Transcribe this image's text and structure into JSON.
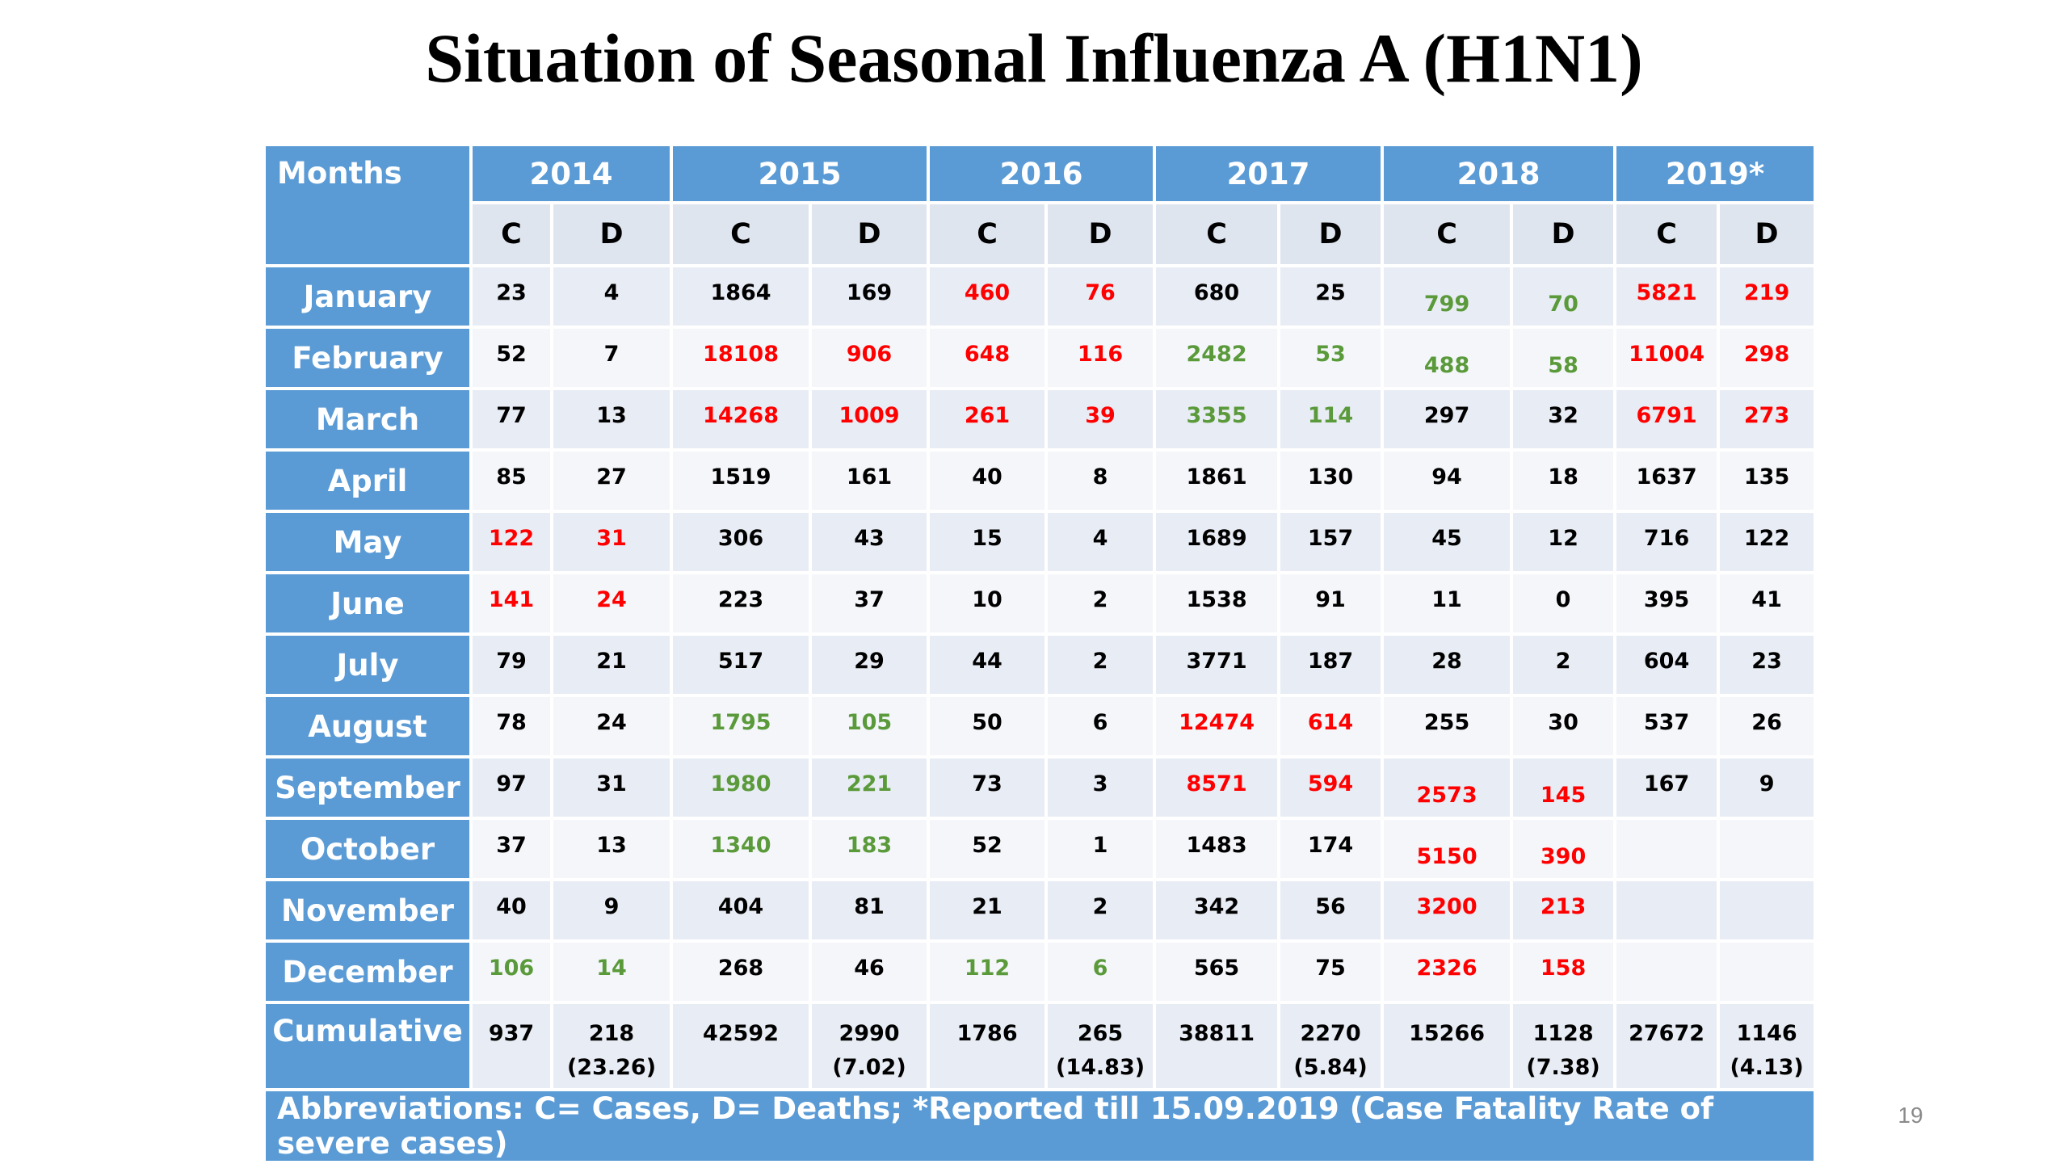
{
  "title": "Situation of Seasonal Influenza A (H1N1)",
  "slide_number": "19",
  "table": {
    "corner_label": "Months",
    "years": [
      "2014",
      "2015",
      "2016",
      "2017",
      "2018",
      "2019*"
    ],
    "subheaders": [
      "C",
      "D",
      "C",
      "D",
      "C",
      "D",
      "C",
      "D",
      "C",
      "D",
      "C",
      "D"
    ],
    "rows": [
      {
        "month": "January",
        "cells": [
          {
            "v": "23",
            "c": "black"
          },
          {
            "v": "4",
            "c": "black"
          },
          {
            "v": "1864",
            "c": "black"
          },
          {
            "v": "169",
            "c": "black"
          },
          {
            "v": "460",
            "c": "red"
          },
          {
            "v": "76",
            "c": "red"
          },
          {
            "v": "680",
            "c": "black"
          },
          {
            "v": "25",
            "c": "black"
          },
          {
            "v": "799",
            "c": "green",
            "low": true
          },
          {
            "v": "70",
            "c": "green",
            "low": true
          },
          {
            "v": "5821",
            "c": "red"
          },
          {
            "v": "219",
            "c": "red"
          }
        ]
      },
      {
        "month": "February",
        "cells": [
          {
            "v": "52",
            "c": "black"
          },
          {
            "v": "7",
            "c": "black"
          },
          {
            "v": "18108",
            "c": "red"
          },
          {
            "v": "906",
            "c": "red"
          },
          {
            "v": "648",
            "c": "red"
          },
          {
            "v": "116",
            "c": "red"
          },
          {
            "v": "2482",
            "c": "green"
          },
          {
            "v": "53",
            "c": "green"
          },
          {
            "v": "488",
            "c": "green",
            "low": true
          },
          {
            "v": "58",
            "c": "green",
            "low": true
          },
          {
            "v": "11004",
            "c": "red"
          },
          {
            "v": "298",
            "c": "red"
          }
        ]
      },
      {
        "month": "March",
        "cells": [
          {
            "v": "77",
            "c": "black"
          },
          {
            "v": "13",
            "c": "black"
          },
          {
            "v": "14268",
            "c": "red"
          },
          {
            "v": "1009",
            "c": "red"
          },
          {
            "v": "261",
            "c": "red"
          },
          {
            "v": "39",
            "c": "red"
          },
          {
            "v": "3355",
            "c": "green"
          },
          {
            "v": "114",
            "c": "green"
          },
          {
            "v": "297",
            "c": "black"
          },
          {
            "v": "32",
            "c": "black"
          },
          {
            "v": "6791",
            "c": "red"
          },
          {
            "v": "273",
            "c": "red"
          }
        ]
      },
      {
        "month": "April",
        "cells": [
          {
            "v": "85",
            "c": "black"
          },
          {
            "v": "27",
            "c": "black"
          },
          {
            "v": "1519",
            "c": "black"
          },
          {
            "v": "161",
            "c": "black"
          },
          {
            "v": "40",
            "c": "black"
          },
          {
            "v": "8",
            "c": "black"
          },
          {
            "v": "1861",
            "c": "black"
          },
          {
            "v": "130",
            "c": "black"
          },
          {
            "v": "94",
            "c": "black"
          },
          {
            "v": "18",
            "c": "black"
          },
          {
            "v": "1637",
            "c": "black"
          },
          {
            "v": "135",
            "c": "black"
          }
        ]
      },
      {
        "month": "May",
        "cells": [
          {
            "v": "122",
            "c": "red"
          },
          {
            "v": "31",
            "c": "red"
          },
          {
            "v": "306",
            "c": "black"
          },
          {
            "v": "43",
            "c": "black"
          },
          {
            "v": "15",
            "c": "black"
          },
          {
            "v": "4",
            "c": "black"
          },
          {
            "v": "1689",
            "c": "black"
          },
          {
            "v": "157",
            "c": "black"
          },
          {
            "v": "45",
            "c": "black"
          },
          {
            "v": "12",
            "c": "black"
          },
          {
            "v": "716",
            "c": "black"
          },
          {
            "v": "122",
            "c": "black"
          }
        ]
      },
      {
        "month": "June",
        "cells": [
          {
            "v": "141",
            "c": "red"
          },
          {
            "v": "24",
            "c": "red"
          },
          {
            "v": "223",
            "c": "black"
          },
          {
            "v": "37",
            "c": "black"
          },
          {
            "v": "10",
            "c": "black"
          },
          {
            "v": "2",
            "c": "black"
          },
          {
            "v": "1538",
            "c": "black"
          },
          {
            "v": "91",
            "c": "black"
          },
          {
            "v": "11",
            "c": "black"
          },
          {
            "v": "0",
            "c": "black"
          },
          {
            "v": "395",
            "c": "black"
          },
          {
            "v": "41",
            "c": "black"
          }
        ]
      },
      {
        "month": "July",
        "cells": [
          {
            "v": "79",
            "c": "black"
          },
          {
            "v": "21",
            "c": "black"
          },
          {
            "v": "517",
            "c": "black"
          },
          {
            "v": "29",
            "c": "black"
          },
          {
            "v": "44",
            "c": "black"
          },
          {
            "v": "2",
            "c": "black"
          },
          {
            "v": "3771",
            "c": "black"
          },
          {
            "v": "187",
            "c": "black"
          },
          {
            "v": "28",
            "c": "black"
          },
          {
            "v": "2",
            "c": "black"
          },
          {
            "v": "604",
            "c": "black"
          },
          {
            "v": "23",
            "c": "black"
          }
        ]
      },
      {
        "month": "August",
        "cells": [
          {
            "v": "78",
            "c": "black"
          },
          {
            "v": "24",
            "c": "black"
          },
          {
            "v": "1795",
            "c": "green"
          },
          {
            "v": "105",
            "c": "green"
          },
          {
            "v": "50",
            "c": "black"
          },
          {
            "v": "6",
            "c": "black"
          },
          {
            "v": "12474",
            "c": "red"
          },
          {
            "v": "614",
            "c": "red"
          },
          {
            "v": "255",
            "c": "black"
          },
          {
            "v": "30",
            "c": "black"
          },
          {
            "v": "537",
            "c": "black"
          },
          {
            "v": "26",
            "c": "black"
          }
        ]
      },
      {
        "month": "September",
        "cells": [
          {
            "v": "97",
            "c": "black"
          },
          {
            "v": "31",
            "c": "black"
          },
          {
            "v": "1980",
            "c": "green"
          },
          {
            "v": "221",
            "c": "green"
          },
          {
            "v": "73",
            "c": "black"
          },
          {
            "v": "3",
            "c": "black"
          },
          {
            "v": "8571",
            "c": "red"
          },
          {
            "v": "594",
            "c": "red"
          },
          {
            "v": "2573",
            "c": "red",
            "low": true
          },
          {
            "v": "145",
            "c": "red",
            "low": true
          },
          {
            "v": "167",
            "c": "black"
          },
          {
            "v": "9",
            "c": "black"
          }
        ]
      },
      {
        "month": "October",
        "cells": [
          {
            "v": "37",
            "c": "black"
          },
          {
            "v": "13",
            "c": "black"
          },
          {
            "v": "1340",
            "c": "green"
          },
          {
            "v": "183",
            "c": "green"
          },
          {
            "v": "52",
            "c": "black"
          },
          {
            "v": "1",
            "c": "black"
          },
          {
            "v": "1483",
            "c": "black"
          },
          {
            "v": "174",
            "c": "black"
          },
          {
            "v": "5150",
            "c": "red",
            "low": true
          },
          {
            "v": "390",
            "c": "red",
            "low": true
          },
          {
            "v": "",
            "c": "black"
          },
          {
            "v": "",
            "c": "black"
          }
        ]
      },
      {
        "month": "November",
        "cells": [
          {
            "v": "40",
            "c": "black"
          },
          {
            "v": "9",
            "c": "black"
          },
          {
            "v": "404",
            "c": "black"
          },
          {
            "v": "81",
            "c": "black"
          },
          {
            "v": "21",
            "c": "black"
          },
          {
            "v": "2",
            "c": "black"
          },
          {
            "v": "342",
            "c": "black"
          },
          {
            "v": "56",
            "c": "black"
          },
          {
            "v": "3200",
            "c": "red"
          },
          {
            "v": "213",
            "c": "red"
          },
          {
            "v": "",
            "c": "black"
          },
          {
            "v": "",
            "c": "black"
          }
        ]
      },
      {
        "month": "December",
        "cells": [
          {
            "v": "106",
            "c": "green"
          },
          {
            "v": "14",
            "c": "green"
          },
          {
            "v": "268",
            "c": "black"
          },
          {
            "v": "46",
            "c": "black"
          },
          {
            "v": "112",
            "c": "green"
          },
          {
            "v": "6",
            "c": "green"
          },
          {
            "v": "565",
            "c": "black"
          },
          {
            "v": "75",
            "c": "black"
          },
          {
            "v": "2326",
            "c": "red"
          },
          {
            "v": "158",
            "c": "red"
          },
          {
            "v": "",
            "c": "black"
          },
          {
            "v": "",
            "c": "black"
          }
        ]
      }
    ],
    "cumulative": {
      "label": "Cumulative",
      "cells": [
        {
          "v": "937",
          "cfr": ""
        },
        {
          "v": "218",
          "cfr": "(23.26)"
        },
        {
          "v": "42592",
          "cfr": ""
        },
        {
          "v": "2990",
          "cfr": "(7.02)"
        },
        {
          "v": "1786",
          "cfr": ""
        },
        {
          "v": "265",
          "cfr": "(14.83)"
        },
        {
          "v": "38811",
          "cfr": ""
        },
        {
          "v": "2270",
          "cfr": "(5.84)"
        },
        {
          "v": "15266",
          "cfr": ""
        },
        {
          "v": "1128",
          "cfr": "(7.38)"
        },
        {
          "v": "27672",
          "cfr": ""
        },
        {
          "v": "1146",
          "cfr": "(4.13)"
        }
      ]
    },
    "footer": "Abbreviations: C= Cases, D= Deaths; *Reported till 15.09.2019  (Case Fatality Rate of severe cases)"
  },
  "colors": {
    "header_blue": "#5b9bd5",
    "highlight_red": "#ff0000",
    "highlight_green": "#5a9a3a"
  }
}
